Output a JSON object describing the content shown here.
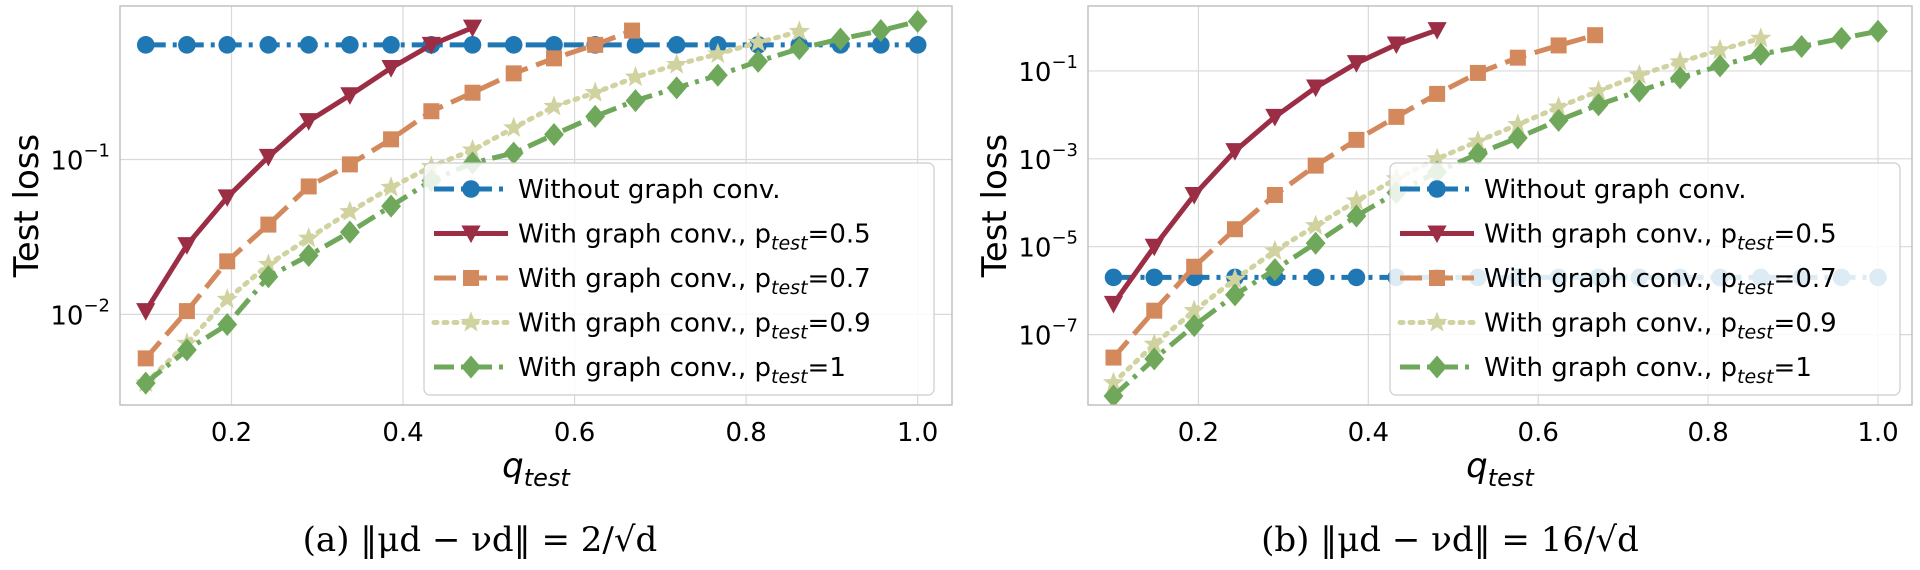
{
  "chart_data": [
    {
      "type": "line",
      "panel_label": "(a)",
      "caption": "(a) ‖μd − νd‖ = 2/√d",
      "xlabel": "q",
      "xlabel_sub": "test",
      "ylabel": "Test loss",
      "yscale": "log",
      "xlim": [
        0.07,
        1.04
      ],
      "ylim": [
        0.0026,
        0.98
      ],
      "xticks": [
        0.2,
        0.4,
        0.6,
        0.8,
        1.0
      ],
      "xtick_labels": [
        "0.2",
        "0.4",
        "0.6",
        "0.8",
        "1.0"
      ],
      "yticks": [
        0.01,
        0.1
      ],
      "ytick_labels": [
        {
          "base": "10",
          "exp": "−2"
        },
        {
          "base": "10",
          "exp": "−1"
        }
      ],
      "grid": true,
      "legend_position": "lower-right",
      "series": [
        {
          "name": "Without graph conv.",
          "p": "",
          "color": "#1f77b4",
          "dash": "dashdot",
          "marker": "circle",
          "x": [
            0.1,
            0.148,
            0.195,
            0.243,
            0.29,
            0.338,
            0.386,
            0.433,
            0.481,
            0.529,
            0.576,
            0.624,
            0.671,
            0.719,
            0.767,
            0.814,
            0.862,
            0.91,
            0.957,
            1.0
          ],
          "y": [
            0.55,
            0.55,
            0.55,
            0.55,
            0.55,
            0.55,
            0.55,
            0.55,
            0.55,
            0.55,
            0.55,
            0.55,
            0.55,
            0.55,
            0.55,
            0.55,
            0.55,
            0.55,
            0.55,
            0.55
          ]
        },
        {
          "name": "With graph conv., p",
          "p": "=0.5",
          "color": "#9b2d45",
          "dash": "solid",
          "marker": "triangle-down",
          "x": [
            0.1,
            0.148,
            0.195,
            0.243,
            0.29,
            0.338,
            0.386,
            0.433,
            0.481
          ],
          "y": [
            0.0105,
            0.028,
            0.057,
            0.104,
            0.177,
            0.26,
            0.39,
            0.55,
            0.71
          ]
        },
        {
          "name": "With graph conv., p",
          "p": "=0.7",
          "color": "#d4895c",
          "dash": "dashed",
          "marker": "square",
          "x": [
            0.1,
            0.148,
            0.195,
            0.243,
            0.29,
            0.338,
            0.386,
            0.433,
            0.481,
            0.529,
            0.576,
            0.624,
            0.667
          ],
          "y": [
            0.0052,
            0.0105,
            0.022,
            0.038,
            0.067,
            0.093,
            0.135,
            0.205,
            0.27,
            0.36,
            0.45,
            0.55,
            0.68
          ]
        },
        {
          "name": "With graph conv., p",
          "p": "=0.9",
          "color": "#d0d2a0",
          "dash": "dotted",
          "marker": "star",
          "x": [
            0.1,
            0.148,
            0.195,
            0.243,
            0.29,
            0.338,
            0.386,
            0.433,
            0.481,
            0.529,
            0.576,
            0.624,
            0.671,
            0.719,
            0.767,
            0.814,
            0.862
          ],
          "y": [
            0.0036,
            0.0065,
            0.0125,
            0.021,
            0.031,
            0.046,
            0.066,
            0.09,
            0.115,
            0.16,
            0.22,
            0.27,
            0.34,
            0.41,
            0.48,
            0.57,
            0.67
          ]
        },
        {
          "name": "With graph conv., p",
          "p": "=1",
          "color": "#6fa85a",
          "dash": "dashdot",
          "marker": "diamond",
          "x": [
            0.1,
            0.148,
            0.195,
            0.243,
            0.29,
            0.338,
            0.386,
            0.433,
            0.481,
            0.529,
            0.576,
            0.624,
            0.671,
            0.719,
            0.767,
            0.814,
            0.862,
            0.91,
            0.957,
            1.0
          ],
          "y": [
            0.0036,
            0.0059,
            0.0086,
            0.0175,
            0.024,
            0.034,
            0.05,
            0.073,
            0.095,
            0.11,
            0.145,
            0.19,
            0.24,
            0.29,
            0.35,
            0.43,
            0.52,
            0.6,
            0.68,
            0.78
          ]
        }
      ]
    },
    {
      "type": "line",
      "panel_label": "(b)",
      "caption": "(b) ‖μd − νd‖ = 16/√d",
      "xlabel": "q",
      "xlabel_sub": "test",
      "ylabel": "Test loss",
      "yscale": "log",
      "xlim": [
        0.07,
        1.04
      ],
      "ylim": [
        2.5e-09,
        3.0
      ],
      "xticks": [
        0.2,
        0.4,
        0.6,
        0.8,
        1.0
      ],
      "xtick_labels": [
        "0.2",
        "0.4",
        "0.6",
        "0.8",
        "1.0"
      ],
      "yticks": [
        1e-07,
        1e-05,
        0.001,
        0.1
      ],
      "ytick_labels": [
        {
          "base": "10",
          "exp": "−7"
        },
        {
          "base": "10",
          "exp": "−5"
        },
        {
          "base": "10",
          "exp": "−3"
        },
        {
          "base": "10",
          "exp": "−1"
        }
      ],
      "grid": true,
      "legend_position": "lower-right",
      "series": [
        {
          "name": "Without graph conv.",
          "p": "",
          "color": "#1f77b4",
          "dash": "dashdot",
          "marker": "circle",
          "x": [
            0.1,
            0.148,
            0.195,
            0.243,
            0.29,
            0.338,
            0.386,
            0.433,
            0.481,
            0.529,
            0.576,
            0.624,
            0.671,
            0.719,
            0.767,
            0.814,
            0.862,
            0.91,
            0.957,
            1.0
          ],
          "y": [
            2e-06,
            2e-06,
            2e-06,
            2e-06,
            2e-06,
            2e-06,
            2e-06,
            2e-06,
            2e-06,
            2e-06,
            2e-06,
            2e-06,
            2e-06,
            2e-06,
            2e-06,
            2e-06,
            2e-06,
            2e-06,
            2e-06,
            2e-06
          ]
        },
        {
          "name": "With graph conv., p",
          "p": "=0.5",
          "color": "#9b2d45",
          "dash": "solid",
          "marker": "triangle-down",
          "x": [
            0.1,
            0.148,
            0.195,
            0.243,
            0.29,
            0.338,
            0.386,
            0.433,
            0.481
          ],
          "y": [
            5e-07,
            1e-05,
            0.00015,
            0.0015,
            0.009,
            0.042,
            0.15,
            0.4,
            0.85
          ]
        },
        {
          "name": "With graph conv., p",
          "p": "=0.7",
          "color": "#d4895c",
          "dash": "dashed",
          "marker": "square",
          "x": [
            0.1,
            0.148,
            0.195,
            0.243,
            0.29,
            0.338,
            0.386,
            0.433,
            0.481,
            0.529,
            0.576,
            0.624,
            0.667
          ],
          "y": [
            3e-08,
            3.5e-07,
            3.5e-06,
            2.5e-05,
            0.00015,
            0.0007,
            0.0027,
            0.009,
            0.03,
            0.09,
            0.2,
            0.38,
            0.65
          ]
        },
        {
          "name": "With graph conv., p",
          "p": "=0.9",
          "color": "#d0d2a0",
          "dash": "dotted",
          "marker": "star",
          "x": [
            0.1,
            0.148,
            0.195,
            0.243,
            0.29,
            0.338,
            0.386,
            0.433,
            0.481,
            0.529,
            0.576,
            0.624,
            0.671,
            0.719,
            0.767,
            0.814,
            0.862
          ],
          "y": [
            8e-09,
            6e-08,
            3.5e-07,
            1.8e-06,
            8e-06,
            3e-05,
            0.00011,
            0.00035,
            0.001,
            0.0025,
            0.006,
            0.015,
            0.035,
            0.08,
            0.16,
            0.3,
            0.55
          ]
        },
        {
          "name": "With graph conv., p",
          "p": "=1",
          "color": "#6fa85a",
          "dash": "dashdot",
          "marker": "diamond",
          "x": [
            0.1,
            0.148,
            0.195,
            0.243,
            0.29,
            0.338,
            0.386,
            0.433,
            0.481,
            0.529,
            0.576,
            0.624,
            0.671,
            0.719,
            0.767,
            0.814,
            0.862,
            0.91,
            0.957,
            1.0
          ],
          "y": [
            4e-09,
            2.8e-08,
            1.6e-07,
            8e-07,
            3e-06,
            1.2e-05,
            5e-05,
            0.00017,
            0.0005,
            0.0013,
            0.003,
            0.0075,
            0.017,
            0.035,
            0.07,
            0.13,
            0.24,
            0.36,
            0.55,
            0.8
          ]
        }
      ]
    }
  ]
}
